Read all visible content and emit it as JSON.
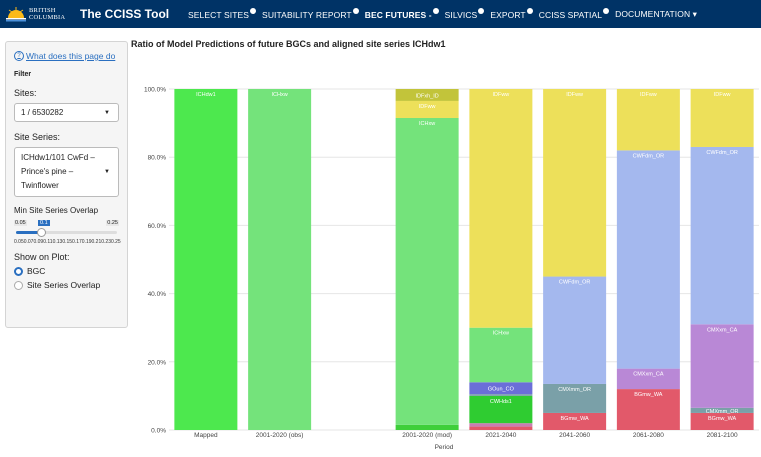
{
  "navbar": {
    "logo_text_line1": "BRITISH",
    "logo_text_line2": "COLUMBIA",
    "title": "The CCISS Tool",
    "items": [
      {
        "label": "SELECT SITES",
        "dot": true,
        "active": false,
        "caret": false
      },
      {
        "label": "SUITABILITY REPORT",
        "dot": true,
        "active": false,
        "caret": false
      },
      {
        "label": "BEC FUTURES -",
        "dot": true,
        "active": true,
        "caret": false
      },
      {
        "label": "SILVICS",
        "dot": true,
        "active": false,
        "caret": false
      },
      {
        "label": "EXPORT",
        "dot": true,
        "active": false,
        "caret": false
      },
      {
        "label": "CCISS SPATIAL",
        "dot": true,
        "active": false,
        "caret": false
      },
      {
        "label": "DOCUMENTATION",
        "dot": false,
        "active": false,
        "caret": true
      }
    ],
    "caret_symbol": "▾"
  },
  "sidebar": {
    "help_icon": "question-circle-icon",
    "help_link": "What does this page do",
    "filter_label": "Filter",
    "sites_label": "Sites:",
    "sites_value": "1 / 6530282",
    "site_series_label": "Site Series:",
    "site_series_value_lines": [
      "ICHdw1/101 CwFd –",
      "Prince's pine –",
      "Twinflower"
    ],
    "overlap_label": "Min Site Series Overlap",
    "slider": {
      "min": "0.05",
      "max": "0.25",
      "value": "0.1",
      "ticks": [
        "0.05",
        "0.07",
        "0.09",
        "0.11",
        "0.13",
        "0.15",
        "0.17",
        "0.19",
        "0.21",
        "0.23",
        "0.25"
      ]
    },
    "show_on_plot_label": "Show on Plot:",
    "radio_options": [
      {
        "label": "BGC",
        "checked": true
      },
      {
        "label": "Site Series Overlap",
        "checked": false
      }
    ]
  },
  "chart_title": "Ratio of Model Predictions of future BGCs and aligned site series ICHdw1",
  "chart_data": {
    "type": "bar",
    "stacked": true,
    "xlabel": "Period",
    "ylabel": "",
    "ylim": [
      0,
      1
    ],
    "yticks": [
      "0.0%",
      "20.0%",
      "40.0%",
      "60.0%",
      "80.0%",
      "100.0%"
    ],
    "categories": [
      "Mapped",
      "2001-2020 (obs)",
      "",
      "2001-2020 (mod)",
      "2021-2040",
      "2041-2060",
      "2061-2080",
      "2081-2100"
    ],
    "bars": [
      {
        "category": "Mapped",
        "segments": [
          {
            "label": "ICHdw1",
            "value": 1.0,
            "color": "#4de84e"
          }
        ]
      },
      {
        "category": "2001-2020 (obs)",
        "segments": [
          {
            "label": "ICHxw",
            "value": 1.0,
            "color": "#74e37b"
          }
        ]
      },
      {
        "category": "2001-2020 (mod)",
        "segments": [
          {
            "label": "",
            "value": 0.015,
            "color": "#3ecf3a"
          },
          {
            "label": "ICHxw",
            "value": 0.9,
            "color": "#74e37b"
          },
          {
            "label": "IDFww",
            "value": 0.05,
            "color": "#ede05a"
          },
          {
            "label": "IDFxh_ID",
            "value": 0.035,
            "color": "#c2c43a"
          }
        ]
      },
      {
        "category": "2021-2040",
        "segments": [
          {
            "label": "",
            "value": 0.01,
            "color": "#e2596a"
          },
          {
            "label": "",
            "value": 0.01,
            "color": "#c97db2"
          },
          {
            "label": "CWHds1",
            "value": 0.08,
            "color": "#2fcc31"
          },
          {
            "label": "",
            "value": 0.005,
            "color": "#7aa0a8"
          },
          {
            "label": "GOun_CO",
            "value": 0.035,
            "color": "#6b6ed8"
          },
          {
            "label": "ICHxw",
            "value": 0.16,
            "color": "#74e37b"
          },
          {
            "label": "IDFww",
            "value": 0.7,
            "color": "#ede05a"
          }
        ]
      },
      {
        "category": "2041-2060",
        "segments": [
          {
            "label": "BGmw_WA",
            "value": 0.05,
            "color": "#e2596a"
          },
          {
            "label": "CMXmm_OR",
            "value": 0.085,
            "color": "#7aa0a8"
          },
          {
            "label": "CWFdm_OR",
            "value": 0.315,
            "color": "#a4b8ee"
          },
          {
            "label": "IDFww",
            "value": 0.55,
            "color": "#ede05a"
          }
        ]
      },
      {
        "category": "2061-2080",
        "segments": [
          {
            "label": "BGmw_WA",
            "value": 0.12,
            "color": "#e2596a"
          },
          {
            "label": "CMXxm_CA",
            "value": 0.06,
            "color": "#b988d6"
          },
          {
            "label": "CWFdm_OR",
            "value": 0.64,
            "color": "#a4b8ee"
          },
          {
            "label": "IDFww",
            "value": 0.18,
            "color": "#ede05a"
          }
        ]
      },
      {
        "category": "2081-2100",
        "segments": [
          {
            "label": "BGmw_WA",
            "value": 0.05,
            "color": "#e2596a"
          },
          {
            "label": "CMXmm_OR",
            "value": 0.015,
            "color": "#7aa0a8"
          },
          {
            "label": "CMXxm_CA",
            "value": 0.245,
            "color": "#b988d6"
          },
          {
            "label": "CWFdm_OR",
            "value": 0.52,
            "color": "#a4b8ee"
          },
          {
            "label": "IDFww",
            "value": 0.17,
            "color": "#ede05a"
          }
        ]
      }
    ]
  }
}
